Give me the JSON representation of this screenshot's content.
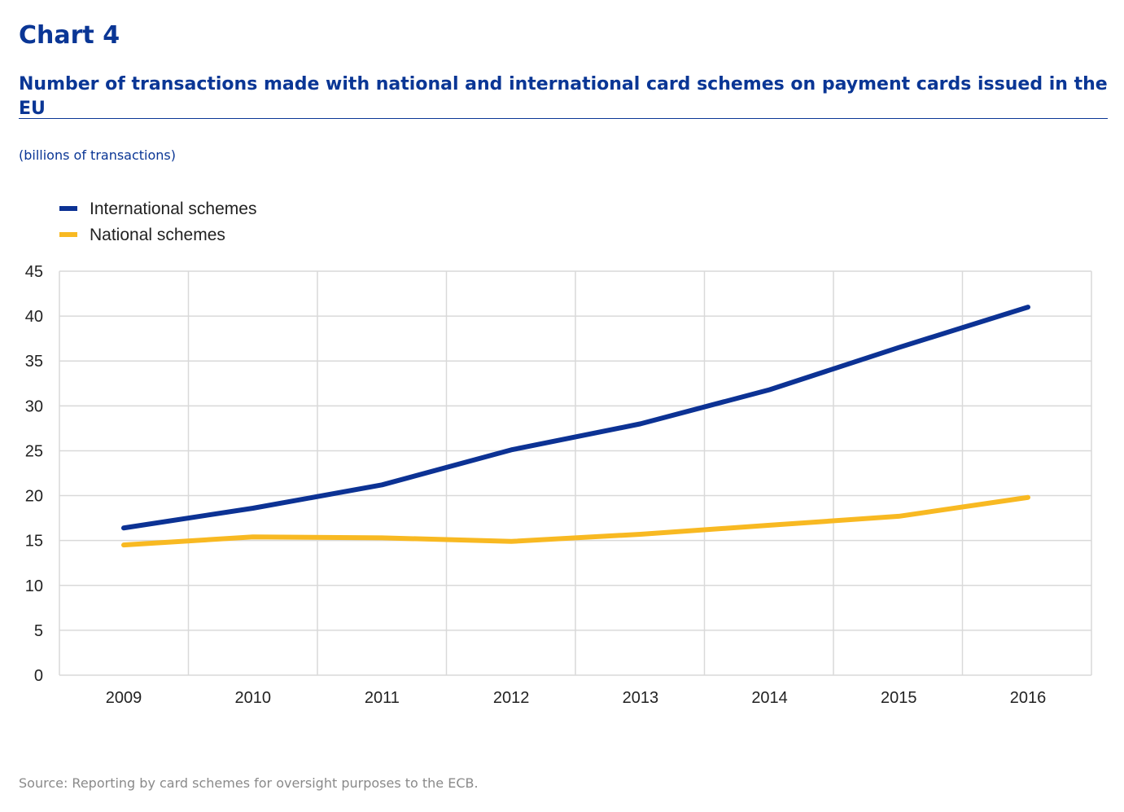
{
  "header": {
    "chart_number": "Chart 4",
    "subtitle": "Number of transactions made with national and international card schemes on payment cards issued in the EU",
    "units": "(billions of transactions)"
  },
  "footer": {
    "source": "Source: Reporting by card schemes for oversight purposes to the ECB."
  },
  "colors": {
    "title": "#0a3695",
    "international": "#0c3294",
    "national": "#f8b922",
    "grid": "#d9d9d9",
    "source_text": "#8a8a8a"
  },
  "chart_data": {
    "type": "line",
    "title": "Chart 4",
    "subtitle": "Number of transactions made with national and international card schemes on payment cards issued in the EU",
    "ylabel": "(billions of transactions)",
    "xlabel": "",
    "x": [
      "2009",
      "2010",
      "2011",
      "2012",
      "2013",
      "2014",
      "2015",
      "2016"
    ],
    "series": [
      {
        "name": "International schemes",
        "color": "#0c3294",
        "values": [
          16.4,
          18.6,
          21.2,
          25.1,
          28.0,
          31.8,
          36.5,
          41.0
        ]
      },
      {
        "name": "National schemes",
        "color": "#f8b922",
        "values": [
          14.5,
          15.4,
          15.3,
          14.9,
          15.7,
          16.7,
          17.7,
          19.8
        ]
      }
    ],
    "ylim": [
      0,
      45
    ],
    "yticks": [
      "0",
      "5",
      "10",
      "15",
      "20",
      "25",
      "30",
      "35",
      "40",
      "45"
    ],
    "grid": true,
    "legend_position": "top-left"
  }
}
